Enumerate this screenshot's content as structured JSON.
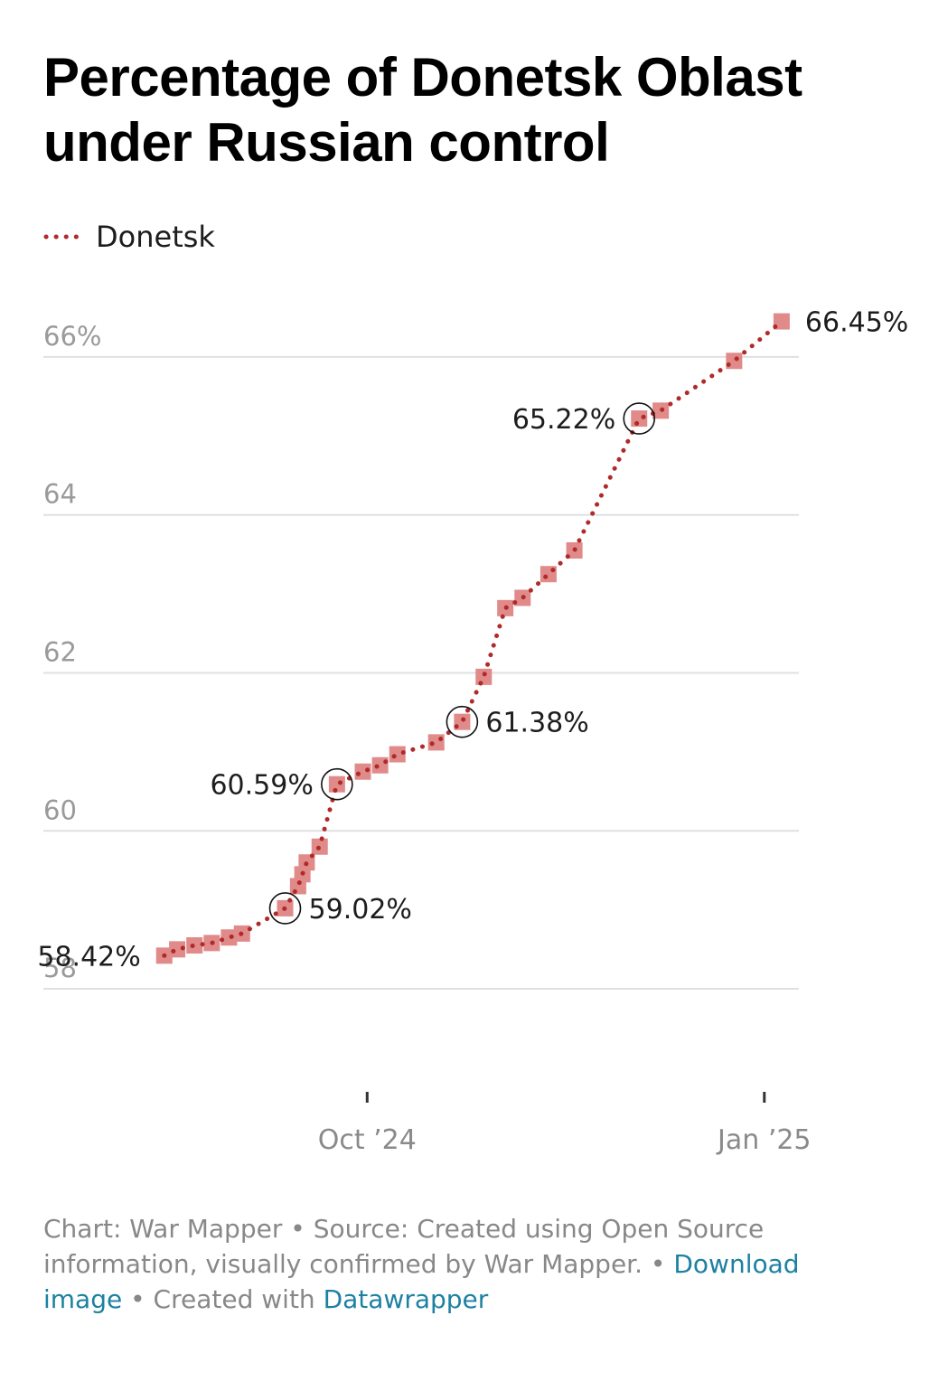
{
  "title": "Percentage of Donetsk Oblast under Russian control",
  "legend": {
    "label": "Donetsk",
    "color": "#b02a2a"
  },
  "colors": {
    "line": "#b02a2a",
    "marker": "#e08a8a",
    "grid": "#e0e0e0",
    "axis_text": "#9a9a9a",
    "label_text": "#1d1d1d",
    "link": "#1d81a2"
  },
  "chart_data": {
    "type": "line",
    "series": [
      {
        "name": "Donetsk",
        "points": [
          {
            "x": "2024-08-15",
            "y": 58.42
          },
          {
            "x": "2024-08-18",
            "y": 58.5
          },
          {
            "x": "2024-08-22",
            "y": 58.55
          },
          {
            "x": "2024-08-26",
            "y": 58.58
          },
          {
            "x": "2024-08-30",
            "y": 58.65
          },
          {
            "x": "2024-09-02",
            "y": 58.7
          },
          {
            "x": "2024-09-12",
            "y": 59.02
          },
          {
            "x": "2024-09-15",
            "y": 59.3
          },
          {
            "x": "2024-09-16",
            "y": 59.45
          },
          {
            "x": "2024-09-17",
            "y": 59.6
          },
          {
            "x": "2024-09-20",
            "y": 59.8
          },
          {
            "x": "2024-09-24",
            "y": 60.59
          },
          {
            "x": "2024-09-30",
            "y": 60.75
          },
          {
            "x": "2024-10-04",
            "y": 60.83
          },
          {
            "x": "2024-10-08",
            "y": 60.97
          },
          {
            "x": "2024-10-17",
            "y": 61.12
          },
          {
            "x": "2024-10-23",
            "y": 61.38
          },
          {
            "x": "2024-10-28",
            "y": 61.95
          },
          {
            "x": "2024-11-02",
            "y": 62.82
          },
          {
            "x": "2024-11-06",
            "y": 62.95
          },
          {
            "x": "2024-11-12",
            "y": 63.25
          },
          {
            "x": "2024-11-18",
            "y": 63.55
          },
          {
            "x": "2024-12-03",
            "y": 65.22
          },
          {
            "x": "2024-12-08",
            "y": 65.32
          },
          {
            "x": "2024-12-25",
            "y": 65.95
          },
          {
            "x": "2025-01-05",
            "y": 66.45
          }
        ]
      }
    ],
    "annotations": [
      {
        "x": "2024-08-15",
        "y": 58.42,
        "label": "58.42%",
        "side": "left",
        "circled": false
      },
      {
        "x": "2024-09-12",
        "y": 59.02,
        "label": "59.02%",
        "side": "right",
        "circled": true
      },
      {
        "x": "2024-09-24",
        "y": 60.59,
        "label": "60.59%",
        "side": "left",
        "circled": true
      },
      {
        "x": "2024-10-23",
        "y": 61.38,
        "label": "61.38%",
        "side": "right",
        "circled": true
      },
      {
        "x": "2024-12-03",
        "y": 65.22,
        "label": "65.22%",
        "side": "left",
        "circled": true
      },
      {
        "x": "2025-01-05",
        "y": 66.45,
        "label": "66.45%",
        "side": "right",
        "circled": false
      }
    ],
    "y_ticks": [
      {
        "value": 58,
        "label": "58"
      },
      {
        "value": 60,
        "label": "60"
      },
      {
        "value": 62,
        "label": "62"
      },
      {
        "value": 64,
        "label": "64"
      },
      {
        "value": 66,
        "label": "66%"
      }
    ],
    "x_ticks": [
      {
        "value": "2024-10-01",
        "label": "Oct ’24"
      },
      {
        "value": "2025-01-01",
        "label": "Jan ’25"
      }
    ],
    "ylim": [
      57.6,
      66.8
    ],
    "grid": true,
    "legend_position": "top-left"
  },
  "footer": {
    "credit": "Chart: War Mapper",
    "separator": " • ",
    "source": "Source: Created using Open Source information, visually confirmed by War Mapper.",
    "download_label": "Download image",
    "created_prefix": "Created with ",
    "created_link": "Datawrapper"
  }
}
